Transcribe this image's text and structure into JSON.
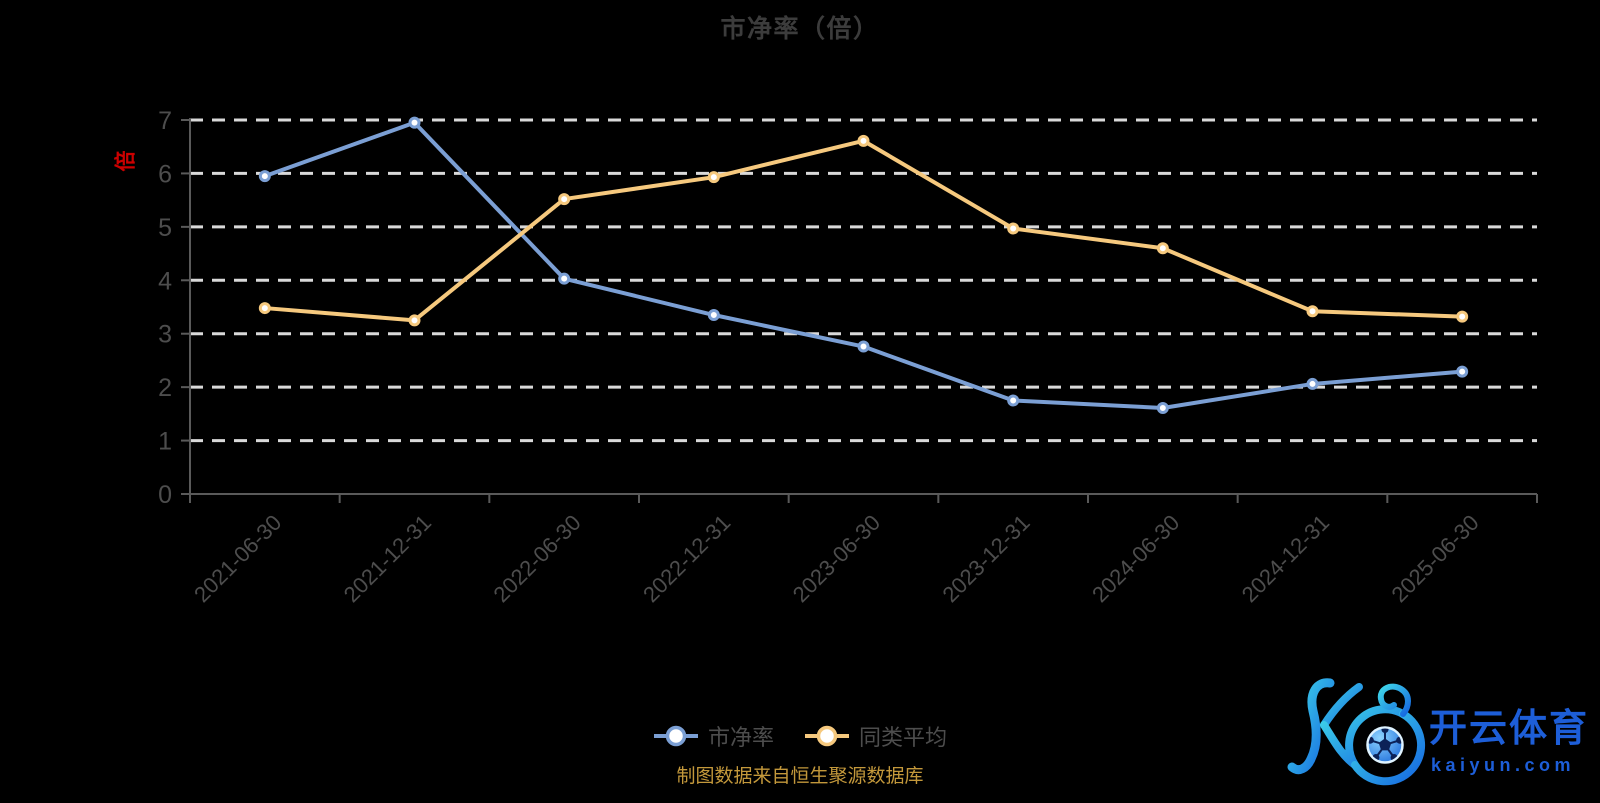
{
  "title": "市净率（倍）",
  "y_axis": {
    "unit": "倍",
    "unit_color": "#cc0000",
    "ticks": [
      "0",
      "1",
      "2",
      "3",
      "4",
      "5",
      "6",
      "7"
    ]
  },
  "chart_data": {
    "type": "line",
    "title": "市净率（倍）",
    "categories": [
      "2021-06-30",
      "2021-12-31",
      "2022-06-30",
      "2022-12-31",
      "2023-06-30",
      "2023-12-31",
      "2024-06-30",
      "2024-12-31",
      "2025-06-30"
    ],
    "series": [
      {
        "name": "市净率",
        "color": "#7b9fd4",
        "values": [
          5.95,
          6.95,
          4.03,
          3.35,
          2.76,
          1.75,
          1.61,
          2.06,
          2.29
        ]
      },
      {
        "name": "同类平均",
        "color": "#f6c97e",
        "values": [
          3.48,
          3.25,
          5.52,
          5.93,
          6.61,
          4.97,
          4.6,
          3.42,
          3.32
        ]
      }
    ],
    "xlabel": "",
    "ylabel": "倍",
    "ylim": [
      0,
      7
    ],
    "grid": "horizontal-dashed-white",
    "legend_position": "bottom-center",
    "marker": "circle-white-fill-colored-ring",
    "background": "#000000"
  },
  "legend": {
    "items": [
      {
        "label": "市净率",
        "color": "#7b9fd4"
      },
      {
        "label": "同类平均",
        "color": "#f6c97e"
      }
    ]
  },
  "source_note": {
    "text": "制图数据来自恒生聚源数据库",
    "color": "#c3983b"
  },
  "watermark": {
    "brand": "开云体育",
    "domain": "kaiyun.com",
    "text_color": "#1d5ed8",
    "gradient": [
      "#3fd7e9",
      "#1566e0"
    ]
  },
  "style": {
    "grid_color": "#d9d9d9",
    "axis_color": "#5a5a5a",
    "tick_label_color": "#4d4d4d",
    "title_color": "#3c3c3c"
  }
}
